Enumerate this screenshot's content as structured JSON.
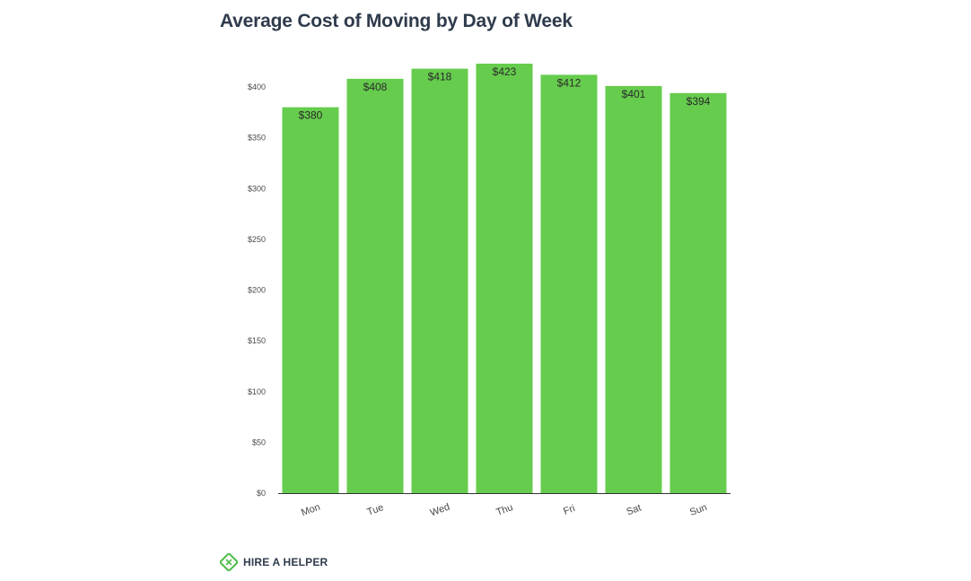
{
  "chart_data": {
    "type": "bar",
    "title": "Average Cost of Moving by Day of Week",
    "xlabel": "",
    "ylabel": "",
    "categories": [
      "Mon",
      "Tue",
      "Wed",
      "Thu",
      "Fri",
      "Sat",
      "Sun"
    ],
    "values": [
      380,
      408,
      418,
      423,
      412,
      401,
      394
    ],
    "data_labels": [
      "$380",
      "$408",
      "$418",
      "$423",
      "$412",
      "$401",
      "$394"
    ],
    "ylim": [
      0,
      400
    ],
    "y_ticks": [
      0,
      50,
      100,
      150,
      200,
      250,
      300,
      350,
      400
    ],
    "y_tick_labels": [
      "$0",
      "$50",
      "$100",
      "$150",
      "$200",
      "$250",
      "$300",
      "$350",
      "$400"
    ],
    "grid": false,
    "legend": "none"
  },
  "colors": {
    "bar": "#66cc4d",
    "title": "#2f3b4c",
    "axis": "#333333",
    "brand_green": "#4cbb47"
  },
  "brand": {
    "name": "HIRE A HELPER",
    "icon": "hire-a-helper-logo-icon"
  }
}
